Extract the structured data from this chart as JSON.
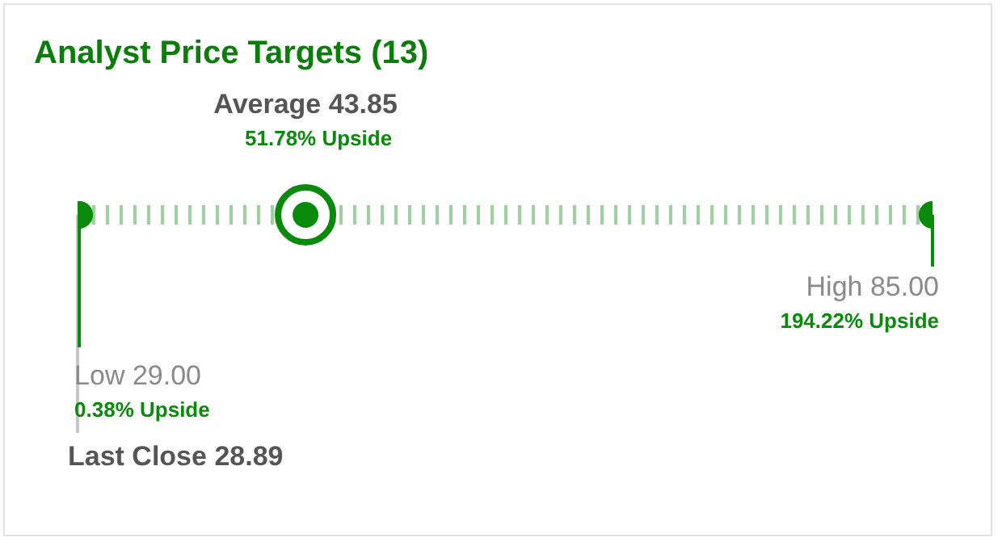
{
  "chart_data": {
    "type": "other",
    "title": "Analyst Price Targets (13)",
    "categories": [
      "Last Close",
      "Low",
      "Average",
      "High"
    ],
    "values": [
      28.89,
      29.0,
      43.85,
      85.0
    ],
    "value_labels": [
      "28.89",
      "29.00",
      "43.85",
      "85.00"
    ],
    "colors": [
      "#111111",
      "#0a8a0a",
      "#0a8a0a",
      "#0a8a0a"
    ],
    "annotations": [
      "0.38% Upside",
      "51.78% Upside",
      "194.22% Upside"
    ]
  }
}
